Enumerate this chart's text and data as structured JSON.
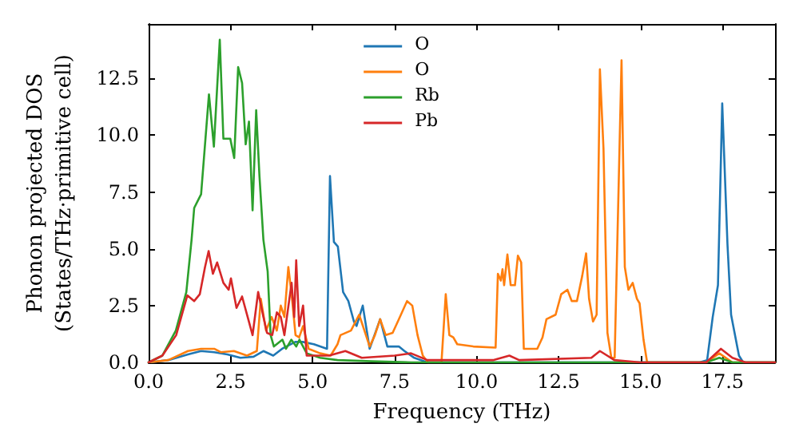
{
  "chart_data": {
    "type": "line",
    "xlabel": "Frequency (THz)",
    "ylabel": "Phonon projected DOS\n(States/THz·primitive cell)",
    "xlim": [
      0,
      19.1
    ],
    "ylim": [
      0,
      14.9
    ],
    "xticks": [
      {
        "value": 0,
        "label": "0.0"
      },
      {
        "value": 2.5,
        "label": "2.5"
      },
      {
        "value": 5,
        "label": "5.0"
      },
      {
        "value": 7.5,
        "label": "7.5"
      },
      {
        "value": 10,
        "label": "10.0"
      },
      {
        "value": 12.5,
        "label": "12.5"
      },
      {
        "value": 15,
        "label": "15.0"
      },
      {
        "value": 17.5,
        "label": "17.5"
      }
    ],
    "yticks": [
      {
        "value": 0,
        "label": "0.0"
      },
      {
        "value": 2.5,
        "label": "2.5"
      },
      {
        "value": 5,
        "label": "5.0"
      },
      {
        "value": 7.5,
        "label": "7.5"
      },
      {
        "value": 10,
        "label": "10.0"
      },
      {
        "value": 12.5,
        "label": "12.5"
      }
    ],
    "legend": "top",
    "grid": false,
    "marker": "none",
    "line_style": "solid",
    "series": [
      {
        "name": "O",
        "color": "#1f77b4",
        "x": [
          0,
          0.6,
          1.2,
          1.6,
          2.0,
          2.4,
          2.8,
          3.2,
          3.5,
          3.8,
          4.07,
          4.47,
          4.7,
          5.04,
          5.44,
          5.53,
          5.65,
          5.77,
          5.93,
          6.09,
          6.26,
          6.34,
          6.53,
          6.74,
          7.06,
          7.28,
          7.63,
          7.8,
          8.1,
          8.5,
          16.8,
          17.03,
          17.2,
          17.36,
          17.49,
          17.65,
          17.76,
          18.0,
          18.13,
          19.1
        ],
        "values": [
          0,
          0.1,
          0.35,
          0.5,
          0.45,
          0.35,
          0.2,
          0.25,
          0.5,
          0.3,
          0.6,
          0.9,
          0.9,
          0.8,
          0.6,
          8.2,
          5.3,
          5.1,
          3.1,
          2.7,
          1.8,
          1.6,
          2.5,
          0.6,
          1.9,
          0.7,
          0.7,
          0.5,
          0.2,
          0,
          0,
          0.1,
          2.0,
          3.4,
          11.4,
          5.2,
          2.1,
          0.3,
          0,
          0
        ]
      },
      {
        "name": "O",
        "color": "#ff7f0e",
        "x": [
          0,
          0.6,
          1.2,
          1.6,
          2.0,
          2.2,
          2.6,
          3.0,
          3.3,
          3.42,
          3.58,
          3.75,
          3.91,
          4.03,
          4.14,
          4.26,
          4.36,
          4.48,
          4.59,
          4.71,
          4.88,
          5.23,
          5.55,
          5.76,
          5.85,
          6.17,
          6.42,
          6.58,
          6.74,
          6.9,
          7.06,
          7.23,
          7.44,
          7.63,
          7.88,
          8.04,
          8.2,
          8.36,
          8.52,
          8.93,
          9.06,
          9.17,
          9.29,
          9.41,
          9.9,
          10.58,
          10.65,
          10.74,
          10.79,
          10.84,
          10.94,
          11.04,
          11.17,
          11.26,
          11.36,
          11.44,
          11.85,
          12.01,
          12.13,
          12.41,
          12.58,
          12.77,
          12.9,
          13.06,
          13.22,
          13.34,
          13.43,
          13.55,
          13.66,
          13.76,
          13.87,
          13.99,
          14.11,
          14.21,
          14.42,
          14.52,
          14.63,
          14.76,
          14.89,
          14.97,
          15.09,
          15.2,
          17.0,
          17.4,
          17.8,
          19.1
        ],
        "values": [
          0,
          0.1,
          0.5,
          0.6,
          0.6,
          0.45,
          0.5,
          0.3,
          0.5,
          2.8,
          1.4,
          2.0,
          1.4,
          2.5,
          2.0,
          4.2,
          3.0,
          1.2,
          1.1,
          1.6,
          0.6,
          0.4,
          0.3,
          0.8,
          1.2,
          1.4,
          2.1,
          1.4,
          0.7,
          1.2,
          1.9,
          1.2,
          1.3,
          1.9,
          2.7,
          2.5,
          1.2,
          0.3,
          0,
          0,
          3.0,
          1.2,
          1.1,
          0.8,
          0.7,
          0.65,
          3.9,
          3.6,
          4.1,
          3.4,
          4.75,
          3.4,
          3.4,
          4.7,
          4.4,
          0.6,
          0.6,
          1.1,
          1.9,
          2.1,
          3.0,
          3.2,
          2.7,
          2.7,
          3.8,
          4.8,
          2.8,
          1.8,
          2.1,
          12.9,
          9.4,
          1.3,
          0.2,
          0.2,
          13.3,
          4.2,
          3.2,
          3.5,
          2.8,
          2.6,
          1.0,
          0,
          0,
          0.4,
          0,
          0
        ]
      },
      {
        "name": "Rb",
        "color": "#2ca02c",
        "x": [
          0,
          0.42,
          0.83,
          1.15,
          1.31,
          1.39,
          1.6,
          1.84,
          1.99,
          2.17,
          2.28,
          2.49,
          2.61,
          2.73,
          2.85,
          2.96,
          3.06,
          3.17,
          3.28,
          3.38,
          3.5,
          3.63,
          3.72,
          3.82,
          4.08,
          4.19,
          4.35,
          4.5,
          4.6,
          4.82,
          5.23,
          5.76,
          6.8,
          8.0,
          17.0,
          17.4,
          17.8,
          19.1
        ],
        "values": [
          0,
          0.3,
          1.4,
          3.1,
          5.4,
          6.8,
          7.4,
          11.8,
          9.5,
          14.2,
          9.85,
          9.85,
          9.0,
          13.0,
          12.3,
          9.6,
          10.6,
          6.7,
          11.1,
          8.2,
          5.4,
          4.0,
          1.2,
          0.7,
          1.0,
          0.6,
          1.0,
          0.7,
          1.0,
          0.4,
          0.2,
          0.1,
          0.05,
          0,
          0,
          0.2,
          0,
          0
        ]
      },
      {
        "name": "Pb",
        "color": "#d62728",
        "x": [
          0,
          0.42,
          0.84,
          1.18,
          1.39,
          1.56,
          1.72,
          1.83,
          1.96,
          2.09,
          2.28,
          2.44,
          2.51,
          2.68,
          2.85,
          3.02,
          3.17,
          3.34,
          3.5,
          3.61,
          3.77,
          3.91,
          4.03,
          4.14,
          4.36,
          4.44,
          4.5,
          4.59,
          4.71,
          4.82,
          5.5,
          6.0,
          6.5,
          7.5,
          8.0,
          8.5,
          10.5,
          11.0,
          11.3,
          13.5,
          13.76,
          14.2,
          15.0,
          17.0,
          17.45,
          17.8,
          18.2,
          19.1
        ],
        "values": [
          0,
          0.3,
          1.2,
          2.95,
          2.7,
          3.0,
          4.2,
          4.9,
          3.9,
          4.4,
          3.5,
          3.2,
          3.7,
          2.4,
          2.9,
          2.0,
          1.2,
          3.1,
          2.0,
          1.3,
          1.2,
          2.2,
          2.0,
          1.2,
          3.5,
          2.0,
          4.5,
          1.6,
          2.5,
          0.3,
          0.3,
          0.5,
          0.2,
          0.3,
          0.4,
          0.1,
          0.1,
          0.3,
          0.1,
          0.2,
          0.5,
          0.1,
          0,
          0,
          0.6,
          0.2,
          0,
          0
        ]
      }
    ]
  }
}
